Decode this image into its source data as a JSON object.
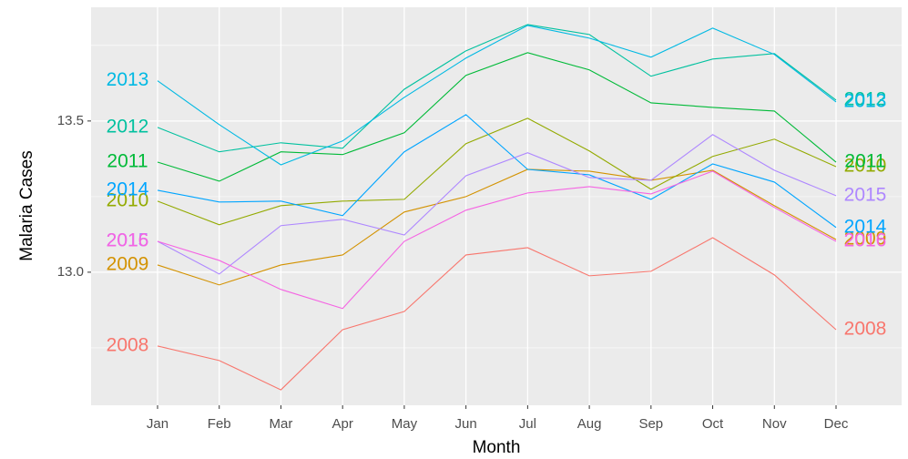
{
  "chart_data": {
    "type": "line",
    "x_label": "Month",
    "y_label": "Malaria Cases",
    "categories": [
      "Jan",
      "Feb",
      "Mar",
      "Apr",
      "May",
      "Jun",
      "Jul",
      "Aug",
      "Sep",
      "Oct",
      "Nov",
      "Dec"
    ],
    "ylim": [
      12.56,
      13.876
    ],
    "yticks": [
      {
        "value": 13,
        "label": "13.0"
      },
      13.5
    ],
    "yminor": [
      12.75,
      13.25,
      13.75
    ],
    "grid": true,
    "series": [
      {
        "name": "2008",
        "color": "#F8766D",
        "values": [
          12.756,
          12.708,
          12.611,
          12.81,
          12.87,
          13.057,
          13.081,
          12.988,
          13.003,
          13.114,
          12.991,
          12.81
        ]
      },
      {
        "name": "2009",
        "color": "#D39200",
        "values": [
          13.024,
          12.958,
          13.024,
          13.057,
          13.199,
          13.25,
          13.34,
          13.334,
          13.304,
          13.337,
          13.22,
          13.108
        ]
      },
      {
        "name": "2010",
        "color": "#93AA00",
        "values": [
          13.235,
          13.157,
          13.22,
          13.235,
          13.241,
          13.425,
          13.509,
          13.401,
          13.274,
          13.383,
          13.44,
          13.349
        ]
      },
      {
        "name": "2011",
        "color": "#00BA38",
        "values": [
          13.364,
          13.301,
          13.398,
          13.389,
          13.461,
          13.651,
          13.726,
          13.669,
          13.56,
          13.545,
          13.533,
          13.364
        ]
      },
      {
        "name": "2012",
        "color": "#00C19F",
        "values": [
          13.479,
          13.398,
          13.428,
          13.41,
          13.605,
          13.732,
          13.819,
          13.786,
          13.648,
          13.705,
          13.723,
          13.569
        ]
      },
      {
        "name": "2013",
        "color": "#00B9E3",
        "values": [
          13.633,
          13.488,
          13.355,
          13.434,
          13.578,
          13.708,
          13.816,
          13.774,
          13.711,
          13.807,
          13.72,
          13.563
        ]
      },
      {
        "name": "2014",
        "color": "#00A5FF",
        "values": [
          13.271,
          13.232,
          13.235,
          13.187,
          13.398,
          13.521,
          13.34,
          13.322,
          13.241,
          13.358,
          13.298,
          13.148
        ]
      },
      {
        "name": "2015",
        "color": "#AE87FF",
        "values": [
          13.102,
          12.994,
          13.154,
          13.175,
          13.123,
          13.319,
          13.395,
          13.313,
          13.304,
          13.455,
          13.337,
          13.253
        ]
      },
      {
        "name": "2016",
        "color": "#F564E3",
        "values": [
          13.102,
          13.039,
          12.943,
          12.88,
          13.102,
          13.205,
          13.262,
          13.283,
          13.259,
          13.334,
          13.214,
          13.102
        ]
      }
    ]
  }
}
